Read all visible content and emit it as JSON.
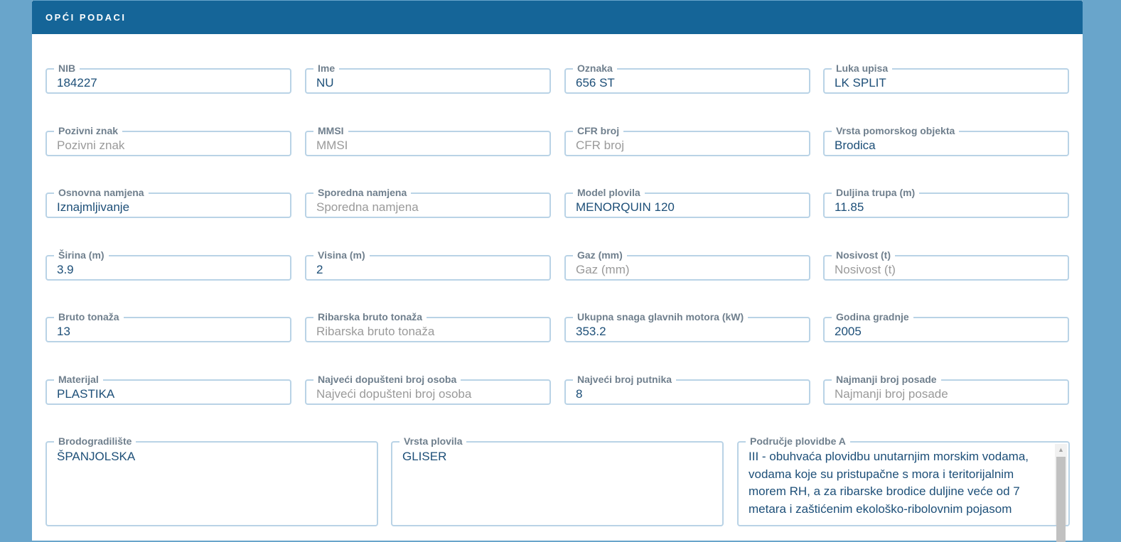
{
  "section_title": "OPĆI PODACI",
  "fields": [
    {
      "label": "NIB",
      "value": "184227",
      "placeholder": ""
    },
    {
      "label": "Ime",
      "value": "NU",
      "placeholder": ""
    },
    {
      "label": "Oznaka",
      "value": "656 ST",
      "placeholder": ""
    },
    {
      "label": "Luka upisa",
      "value": "LK SPLIT",
      "placeholder": ""
    },
    {
      "label": "Pozivni znak",
      "value": "",
      "placeholder": "Pozivni znak"
    },
    {
      "label": "MMSI",
      "value": "",
      "placeholder": "MMSI"
    },
    {
      "label": "CFR broj",
      "value": "",
      "placeholder": "CFR broj"
    },
    {
      "label": "Vrsta pomorskog objekta",
      "value": "Brodica",
      "placeholder": ""
    },
    {
      "label": "Osnovna namjena",
      "value": "Iznajmljivanje",
      "placeholder": ""
    },
    {
      "label": "Sporedna namjena",
      "value": "",
      "placeholder": "Sporedna namjena"
    },
    {
      "label": "Model plovila",
      "value": "MENORQUIN 120",
      "placeholder": ""
    },
    {
      "label": "Duljina trupa (m)",
      "value": "11.85",
      "placeholder": ""
    },
    {
      "label": "Širina (m)",
      "value": "3.9",
      "placeholder": ""
    },
    {
      "label": "Visina (m)",
      "value": "2",
      "placeholder": ""
    },
    {
      "label": "Gaz (mm)",
      "value": "",
      "placeholder": "Gaz (mm)"
    },
    {
      "label": "Nosivost (t)",
      "value": "",
      "placeholder": "Nosivost (t)"
    },
    {
      "label": "Bruto tonaža",
      "value": "13",
      "placeholder": ""
    },
    {
      "label": "Ribarska bruto tonaža",
      "value": "",
      "placeholder": "Ribarska bruto tonaža"
    },
    {
      "label": "Ukupna snaga glavnih motora (kW)",
      "value": "353.2",
      "placeholder": ""
    },
    {
      "label": "Godina gradnje",
      "value": "2005",
      "placeholder": ""
    },
    {
      "label": "Materijal",
      "value": "PLASTIKA",
      "placeholder": ""
    },
    {
      "label": "Najveći dopušteni broj osoba",
      "value": "",
      "placeholder": "Najveći dopušteni broj osoba"
    },
    {
      "label": "Najveći broj putnika",
      "value": "8",
      "placeholder": ""
    },
    {
      "label": "Najmanji broj posade",
      "value": "",
      "placeholder": "Najmanji broj posade"
    }
  ],
  "textareas": [
    {
      "label": "Brodogradilište",
      "value": "ŠPANJOLSKA"
    },
    {
      "label": "Vrsta plovila",
      "value": "GLISER"
    },
    {
      "label": "Područje plovidbe A",
      "value": "III - obuhvaća plovidbu unutarnjim morskim vodama, vodama koje su pristupačne s mora i teritorijalnim morem RH, a za ribarske brodice duljine veće od 7 metara i zaštićenim ekološko-ribolovnim pojasom"
    }
  ]
}
